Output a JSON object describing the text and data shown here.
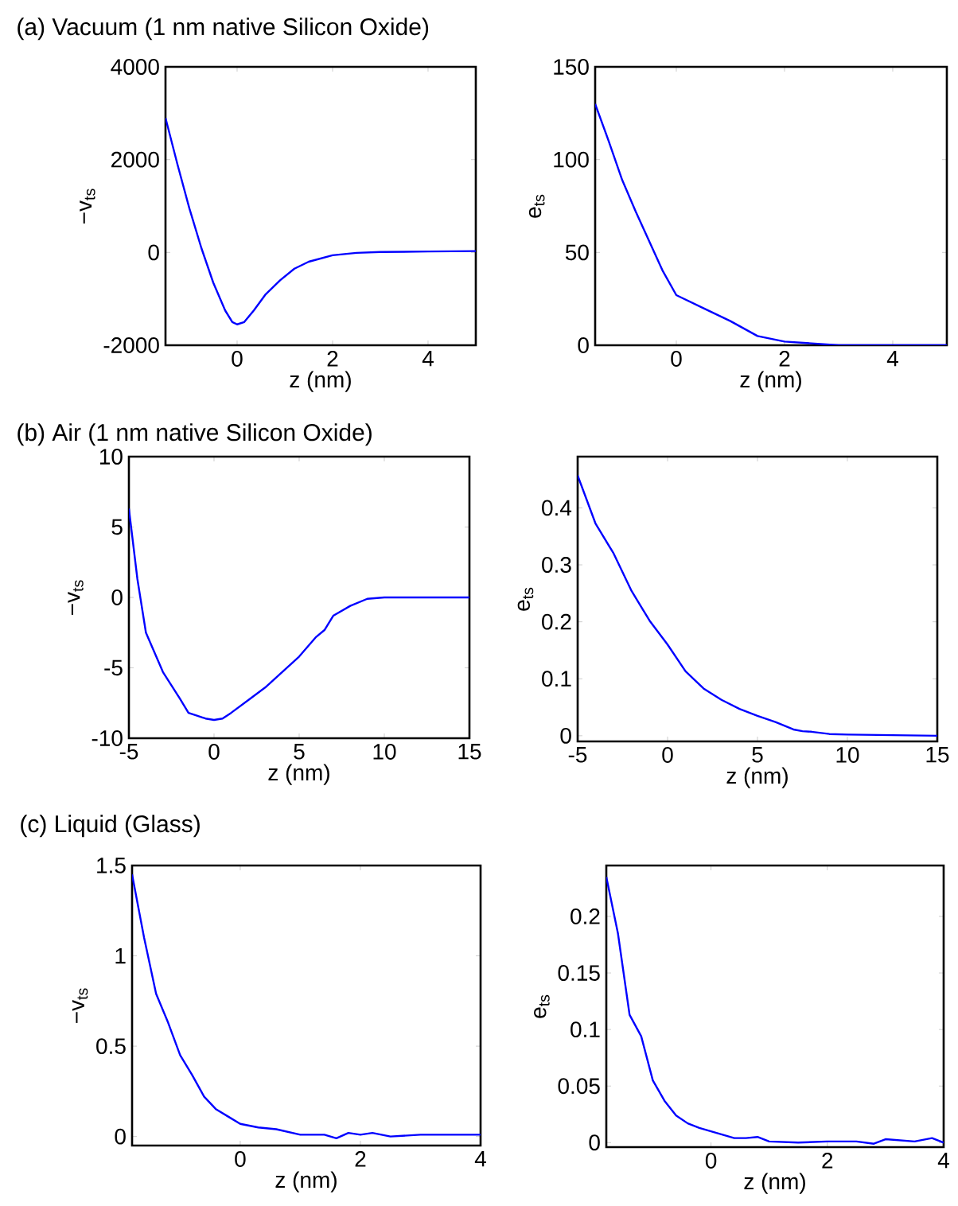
{
  "chart_data": [
    {
      "type": "line",
      "title": "(a) Vacuum (1 nm native Silicon Oxide)",
      "xlabel": "z (nm)",
      "ylabel": "−v$_{ts}$",
      "color": "#0000ff",
      "x": [
        -1.5,
        -1.25,
        -1,
        -0.75,
        -0.5,
        -0.25,
        -0.1,
        0,
        0.15,
        0.35,
        0.6,
        0.9,
        1.2,
        1.5,
        2,
        2.5,
        3,
        4,
        5
      ],
      "values": [
        2900,
        1900,
        950,
        100,
        -650,
        -1250,
        -1500,
        -1550,
        -1500,
        -1250,
        -900,
        -600,
        -350,
        -200,
        -60,
        -10,
        10,
        20,
        30
      ],
      "xlim": [
        -1.5,
        5
      ],
      "ylim": [
        -2000,
        4000
      ],
      "xticks": [
        0,
        2,
        4
      ],
      "yticks": [
        -2000,
        0,
        2000,
        4000
      ]
    },
    {
      "type": "line",
      "xlabel": "z (nm)",
      "ylabel": "e$_{ts}$",
      "color": "#0000ff",
      "x": [
        -1.5,
        -1.25,
        -1,
        -0.75,
        -0.5,
        -0.25,
        0,
        0.5,
        1,
        1.5,
        2,
        2.5,
        3,
        5
      ],
      "values": [
        130,
        110,
        89,
        72,
        56,
        40,
        27,
        20,
        13,
        5,
        2,
        1,
        0,
        0
      ],
      "xlim": [
        -1.5,
        5
      ],
      "ylim": [
        0,
        150
      ],
      "xticks": [
        0,
        2,
        4
      ],
      "yticks": [
        0,
        50,
        100,
        150
      ]
    },
    {
      "type": "line",
      "title": "(b) Air (1 nm native Silicon Oxide)",
      "xlabel": "z (nm)",
      "ylabel": "−v$_{ts}$",
      "color": "#0000ff",
      "x": [
        -5,
        -4.5,
        -4,
        -3,
        -2,
        -1.5,
        -1,
        -0.5,
        0,
        0.5,
        1,
        2,
        3,
        4,
        5,
        6,
        6.5,
        7,
        8,
        9,
        10,
        15
      ],
      "values": [
        6.3,
        1.3,
        -2.5,
        -5.3,
        -7.2,
        -8.2,
        -8.4,
        -8.6,
        -8.7,
        -8.6,
        -8.2,
        -7.3,
        -6.4,
        -5.3,
        -4.2,
        -2.8,
        -2.3,
        -1.3,
        -0.6,
        -0.1,
        0,
        0
      ],
      "xlim": [
        -5,
        15
      ],
      "ylim": [
        -10,
        10
      ],
      "xticks": [
        -5,
        0,
        5,
        10,
        15
      ],
      "yticks": [
        -10,
        -5,
        0,
        5,
        10
      ]
    },
    {
      "type": "line",
      "xlabel": "z (nm)",
      "ylabel": "e$_{ts}$",
      "color": "#0000ff",
      "x": [
        -5,
        -4,
        -3,
        -2,
        -1,
        0,
        1,
        2,
        3,
        4,
        5,
        6,
        7,
        7.5,
        8,
        9,
        10,
        15
      ],
      "values": [
        0.457,
        0.372,
        0.32,
        0.254,
        0.202,
        0.16,
        0.113,
        0.083,
        0.063,
        0.047,
        0.035,
        0.024,
        0.011,
        0.008,
        0.007,
        0.003,
        0.002,
        0
      ],
      "xlim": [
        -5,
        15
      ],
      "ylim": [
        -0.01,
        0.49
      ],
      "xticks": [
        -5,
        0,
        5,
        10,
        15
      ],
      "yticks": [
        0,
        0.1,
        0.2,
        0.3,
        0.4
      ]
    },
    {
      "type": "line",
      "title": "(c) Liquid (Glass)",
      "xlabel": "z (nm)",
      "ylabel": "−v$_{ts}$",
      "color": "#0000ff",
      "x": [
        -1.8,
        -1.6,
        -1.4,
        -1.2,
        -1,
        -0.8,
        -0.6,
        -0.4,
        -0.2,
        0,
        0.3,
        0.6,
        1,
        1.4,
        1.6,
        1.8,
        2,
        2.2,
        2.5,
        3,
        3.5,
        4
      ],
      "values": [
        1.45,
        1.1,
        0.79,
        0.63,
        0.45,
        0.34,
        0.22,
        0.15,
        0.11,
        0.07,
        0.05,
        0.04,
        0.01,
        0.01,
        -0.01,
        0.02,
        0.01,
        0.02,
        0,
        0.01,
        0.01,
        0.01
      ],
      "xlim": [
        -1.8,
        4
      ],
      "ylim": [
        -0.05,
        1.5
      ],
      "xticks": [
        0,
        2,
        4
      ],
      "yticks": [
        0,
        0.5,
        1,
        1.5
      ]
    },
    {
      "type": "line",
      "xlabel": "z (nm)",
      "ylabel": "e$_{ts}$",
      "color": "#0000ff",
      "x": [
        -1.8,
        -1.6,
        -1.4,
        -1.2,
        -1,
        -0.8,
        -0.6,
        -0.4,
        -0.2,
        0,
        0.2,
        0.4,
        0.6,
        0.8,
        1,
        1.5,
        2,
        2.5,
        2.8,
        3,
        3.5,
        3.8,
        4
      ],
      "values": [
        0.235,
        0.185,
        0.113,
        0.094,
        0.055,
        0.037,
        0.024,
        0.017,
        0.013,
        0.01,
        0.007,
        0.004,
        0.004,
        0.005,
        0.001,
        0,
        0.001,
        0.001,
        -0.001,
        0.003,
        0.001,
        0.004,
        0
      ],
      "xlim": [
        -1.8,
        4
      ],
      "ylim": [
        -0.004,
        0.245
      ],
      "xticks": [
        0,
        2,
        4
      ],
      "yticks": [
        0,
        0.05,
        0.1,
        0.15,
        0.2
      ]
    }
  ]
}
